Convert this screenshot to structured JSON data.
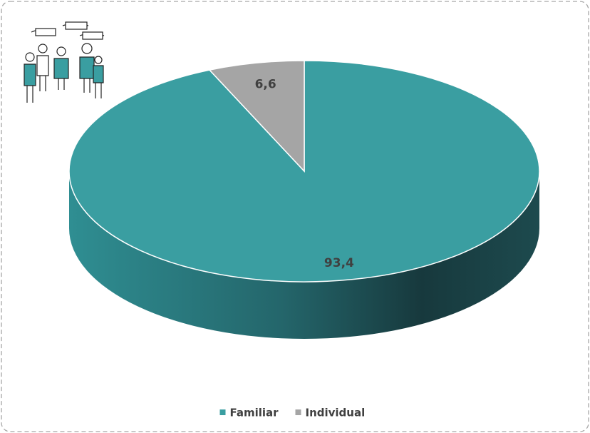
{
  "chart_data": {
    "type": "pie",
    "categories": [
      "Familiar",
      "Individual"
    ],
    "values": [
      93.4,
      6.6
    ],
    "value_labels": [
      "93,4",
      "6,6"
    ],
    "colors": [
      "#3a9ea1",
      "#a5a5a5"
    ],
    "legend": "bottom"
  }
}
